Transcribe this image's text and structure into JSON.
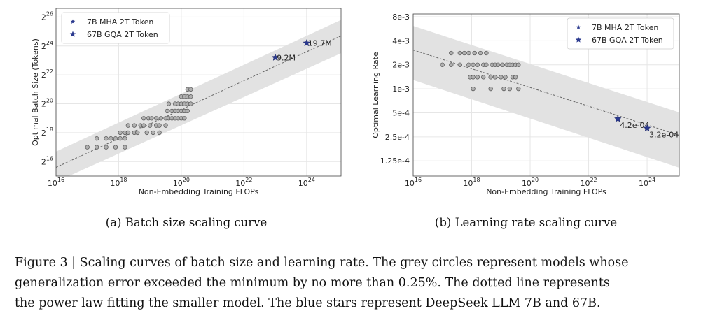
{
  "figure_caption": {
    "line1": "Figure 3 | Scaling curves of batch size and learning rate. The grey circles represent models whose",
    "line2": "generalization error exceeded the minimum by no more than 0.25%. The dotted line represents",
    "line3": "the power law fitting the smaller model. The blue stars represent DeepSeek LLM 7B and 67B."
  },
  "colors": {
    "band": "#e2e2e2",
    "circle_fill": "#b0b0b0",
    "circle_stroke": "#555555",
    "star": "#2b3a8f",
    "fit_line": "#666666",
    "grid": "#e6e6e6"
  },
  "chart_data": [
    {
      "type": "scatter",
      "subcaption": "(a) Batch size scaling curve",
      "xlabel": "Non-Embedding Training FLOPs",
      "ylabel": "Optimal Batch Size (Tokens)",
      "xscale": "log",
      "yscale": "log2",
      "xlim_log10": [
        16,
        25.1
      ],
      "ylim_log2": [
        15,
        26.6
      ],
      "xticks": [
        {
          "exp": 16,
          "base": "10",
          "sup": "16"
        },
        {
          "exp": 18,
          "base": "10",
          "sup": "18"
        },
        {
          "exp": 20,
          "base": "10",
          "sup": "20"
        },
        {
          "exp": 22,
          "base": "10",
          "sup": "22"
        },
        {
          "exp": 24,
          "base": "10",
          "sup": "24"
        }
      ],
      "yticks": [
        {
          "exp": 16,
          "base": "2",
          "sup": "16"
        },
        {
          "exp": 18,
          "base": "2",
          "sup": "18"
        },
        {
          "exp": 20,
          "base": "2",
          "sup": "20"
        },
        {
          "exp": 22,
          "base": "2",
          "sup": "22"
        },
        {
          "exp": 24,
          "base": "2",
          "sup": "24"
        },
        {
          "exp": 26,
          "base": "2",
          "sup": "26"
        }
      ],
      "grid": true,
      "legend_position": "top-left",
      "legend": [
        "7B MHA 2T Token",
        "67B GQA 2T Token"
      ],
      "fit_line_log": {
        "x": [
          16,
          25.1
        ],
        "y": [
          15.6,
          24.7
        ]
      },
      "band_log": {
        "x": [
          16,
          25.1
        ],
        "upper": [
          16.7,
          25.8
        ],
        "lower": [
          14.6,
          23.5
        ]
      },
      "grey_circles_log": [
        [
          17.0,
          17.0
        ],
        [
          17.3,
          17.0
        ],
        [
          17.3,
          17.6
        ],
        [
          17.6,
          17.0
        ],
        [
          17.6,
          17.6
        ],
        [
          17.75,
          17.6
        ],
        [
          17.9,
          17.0
        ],
        [
          17.9,
          17.6
        ],
        [
          18.05,
          17.6
        ],
        [
          18.05,
          18.0
        ],
        [
          18.2,
          17.0
        ],
        [
          18.2,
          17.6
        ],
        [
          18.2,
          18.0
        ],
        [
          18.3,
          18.0
        ],
        [
          18.3,
          18.5
        ],
        [
          18.5,
          18.0
        ],
        [
          18.5,
          18.5
        ],
        [
          18.6,
          18.0
        ],
        [
          18.7,
          18.5
        ],
        [
          18.8,
          18.5
        ],
        [
          18.8,
          19.0
        ],
        [
          18.9,
          18.0
        ],
        [
          18.95,
          19.0
        ],
        [
          19.0,
          18.5
        ],
        [
          19.05,
          19.0
        ],
        [
          19.1,
          18.0
        ],
        [
          19.2,
          18.5
        ],
        [
          19.2,
          19.0
        ],
        [
          19.3,
          18.0
        ],
        [
          19.3,
          18.5
        ],
        [
          19.35,
          19.0
        ],
        [
          19.5,
          19.0
        ],
        [
          19.5,
          18.5
        ],
        [
          19.55,
          19.5
        ],
        [
          19.6,
          19.0
        ],
        [
          19.6,
          20.0
        ],
        [
          19.7,
          19.5
        ],
        [
          19.7,
          19.0
        ],
        [
          19.8,
          20.0
        ],
        [
          19.8,
          19.5
        ],
        [
          19.8,
          19.0
        ],
        [
          19.9,
          19.5
        ],
        [
          19.9,
          20.0
        ],
        [
          19.9,
          19.0
        ],
        [
          20.0,
          20.0
        ],
        [
          20.0,
          19.5
        ],
        [
          20.0,
          19.0
        ],
        [
          20.0,
          20.5
        ],
        [
          20.1,
          20.5
        ],
        [
          20.1,
          20.0
        ],
        [
          20.1,
          19.5
        ],
        [
          20.1,
          19.0
        ],
        [
          20.2,
          20.0
        ],
        [
          20.2,
          20.5
        ],
        [
          20.2,
          21.0
        ],
        [
          20.2,
          19.5
        ],
        [
          20.3,
          20.5
        ],
        [
          20.3,
          20.0
        ],
        [
          20.3,
          21.0
        ]
      ],
      "stars": [
        {
          "name": "7B MHA 2T Token",
          "x_log": 23.0,
          "y_log": 23.2,
          "label": "9.2M"
        },
        {
          "name": "67B GQA 2T Token",
          "x_log": 24.0,
          "y_log": 24.2,
          "label": "19.7M"
        }
      ]
    },
    {
      "type": "scatter",
      "subcaption": "(b) Learning rate scaling curve",
      "xlabel": "Non-Embedding Training FLOPs",
      "ylabel": "Optimal Learning Rate",
      "xscale": "log",
      "yscale": "log2",
      "xlim_log10": [
        16,
        25.1
      ],
      "ylim_log2": [
        -13.6,
        -6.85
      ],
      "xticks": [
        {
          "exp": 16,
          "base": "10",
          "sup": "16"
        },
        {
          "exp": 18,
          "base": "10",
          "sup": "18"
        },
        {
          "exp": 20,
          "base": "10",
          "sup": "20"
        },
        {
          "exp": 22,
          "base": "10",
          "sup": "22"
        },
        {
          "exp": 24,
          "base": "10",
          "sup": "24"
        }
      ],
      "yticks": [
        "1.25e-4",
        "2.5e-4",
        "5e-4",
        "1e-3",
        "2e-3",
        "4e-3",
        "8e-3"
      ],
      "ytick_values": [
        0.000125,
        0.00025,
        0.0005,
        0.001,
        0.002,
        0.004,
        0.008
      ],
      "grid": true,
      "legend_position": "top-right",
      "legend": [
        "7B MHA 2T Token",
        "67B GQA 2T Token"
      ],
      "fit_line_log2": {
        "x": [
          16,
          25.1
        ],
        "y": [
          -8.35,
          -11.9
        ]
      },
      "band_log2": {
        "x": [
          16,
          25.1
        ],
        "upper": [
          -7.35,
          -10.95
        ],
        "lower": [
          -9.6,
          -13.25
        ]
      },
      "grey_circles": [
        [
          17.0,
          0.002
        ],
        [
          17.3,
          0.002
        ],
        [
          17.3,
          0.0028
        ],
        [
          17.6,
          0.0028
        ],
        [
          17.6,
          0.002
        ],
        [
          17.75,
          0.0028
        ],
        [
          17.9,
          0.0028
        ],
        [
          17.9,
          0.002
        ],
        [
          17.95,
          0.0014
        ],
        [
          18.05,
          0.001
        ],
        [
          18.05,
          0.0014
        ],
        [
          18.05,
          0.002
        ],
        [
          18.1,
          0.0028
        ],
        [
          18.2,
          0.0014
        ],
        [
          18.2,
          0.002
        ],
        [
          18.3,
          0.0028
        ],
        [
          18.4,
          0.0014
        ],
        [
          18.4,
          0.002
        ],
        [
          18.5,
          0.002
        ],
        [
          18.5,
          0.0028
        ],
        [
          18.65,
          0.0014
        ],
        [
          18.65,
          0.001
        ],
        [
          18.7,
          0.002
        ],
        [
          18.8,
          0.0014
        ],
        [
          18.8,
          0.002
        ],
        [
          18.9,
          0.002
        ],
        [
          19.0,
          0.0014
        ],
        [
          19.05,
          0.002
        ],
        [
          19.1,
          0.001
        ],
        [
          19.15,
          0.0014
        ],
        [
          19.2,
          0.002
        ],
        [
          19.3,
          0.002
        ],
        [
          19.3,
          0.001
        ],
        [
          19.4,
          0.0014
        ],
        [
          19.4,
          0.002
        ],
        [
          19.5,
          0.0014
        ],
        [
          19.5,
          0.002
        ],
        [
          19.6,
          0.001
        ],
        [
          19.6,
          0.002
        ]
      ],
      "stars": [
        {
          "name": "7B MHA 2T Token",
          "x_log": 23.0,
          "value": 0.00042,
          "label": "4.2e-04"
        },
        {
          "name": "67B GQA 2T Token",
          "x_log": 24.0,
          "value": 0.00032,
          "label": "3.2e-04"
        }
      ]
    }
  ]
}
